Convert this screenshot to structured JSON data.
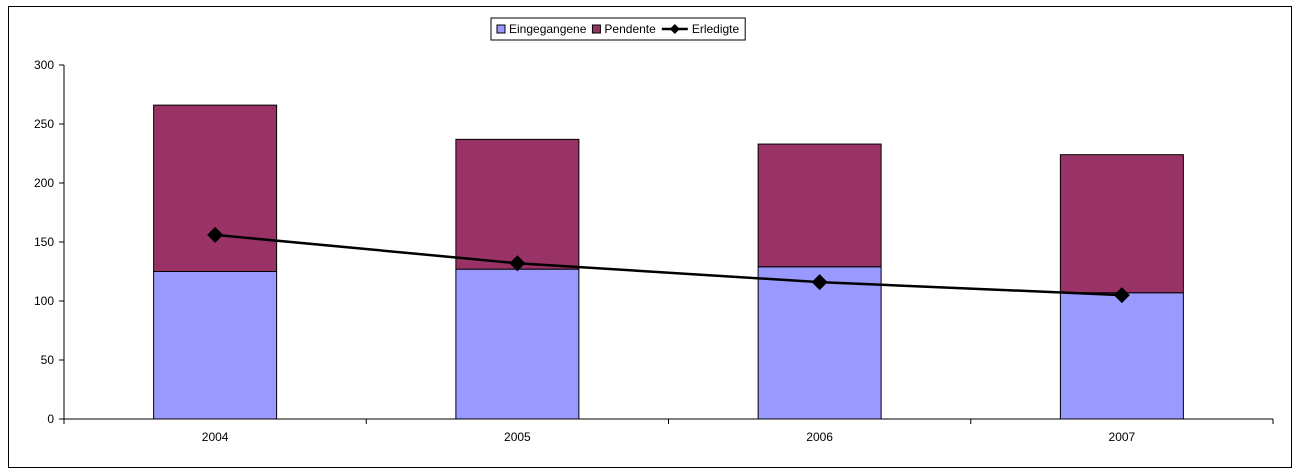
{
  "chart_data": {
    "type": "bar",
    "stacked": true,
    "categories": [
      "2004",
      "2005",
      "2006",
      "2007"
    ],
    "series": [
      {
        "name": "Eingegangene",
        "type": "bar",
        "color": "#9999ff",
        "values": [
          125,
          127,
          129,
          107
        ]
      },
      {
        "name": "Pendente",
        "type": "bar",
        "color": "#993366",
        "values": [
          141,
          110,
          104,
          117
        ]
      },
      {
        "name": "Erledigte",
        "type": "line",
        "marker": "diamond",
        "color": "#000000",
        "values": [
          156,
          132,
          116,
          105
        ]
      }
    ],
    "ylim": [
      0,
      300
    ],
    "yticks": [
      "0",
      "50",
      "100",
      "150",
      "200",
      "250",
      "300"
    ],
    "grid": false,
    "legend_position": "top-center"
  }
}
